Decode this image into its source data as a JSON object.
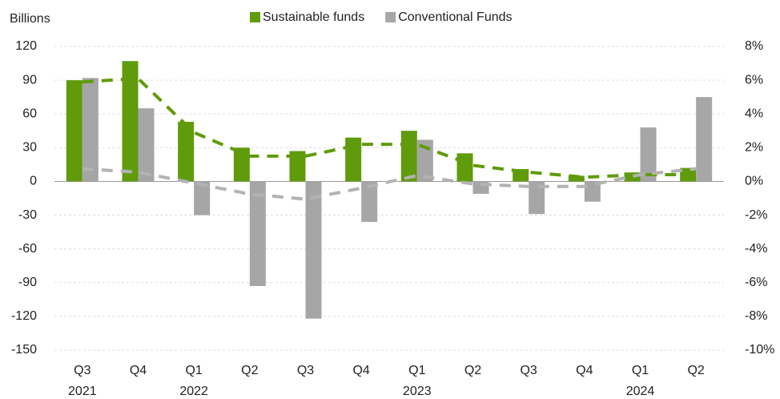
{
  "chart_data": {
    "type": "combo",
    "y_axis_label": "Billions",
    "categories": [
      "Q3",
      "Q4",
      "Q1",
      "Q2",
      "Q3",
      "Q4",
      "Q1",
      "Q2",
      "Q3",
      "Q4",
      "Q1",
      "Q2"
    ],
    "category_years": [
      "2021",
      null,
      "2022",
      null,
      null,
      null,
      "2023",
      null,
      null,
      null,
      "2024",
      null
    ],
    "series": [
      {
        "name": "Sustainable funds",
        "type": "bar",
        "color": "#5f9b0a",
        "values": [
          90,
          107,
          53,
          30,
          27,
          39,
          45,
          25,
          11,
          5,
          8,
          12
        ]
      },
      {
        "name": "Conventional Funds",
        "type": "bar",
        "color": "#a6a6a6",
        "values": [
          92,
          65,
          -30,
          -93,
          -122,
          -36,
          37,
          -11,
          -29,
          -18,
          48,
          75
        ]
      },
      {
        "type": "line",
        "axis": "y2",
        "color": "#5f9b0a",
        "values": [
          5.9,
          6.1,
          2.9,
          1.5,
          1.5,
          2.2,
          2.2,
          0.95,
          0.55,
          0.25,
          0.4,
          0.4
        ]
      },
      {
        "type": "line",
        "axis": "y2",
        "color": "#b3b3b3",
        "values": [
          0.75,
          0.55,
          -0.1,
          -0.75,
          -1.05,
          -0.4,
          0.35,
          -0.15,
          -0.3,
          -0.3,
          0.4,
          0.75
        ]
      }
    ],
    "ylim": [
      -150,
      120
    ],
    "yticks": [
      -150,
      -120,
      -90,
      -60,
      -30,
      0,
      30,
      60,
      90,
      120
    ],
    "y2lim": [
      -10,
      8
    ],
    "y2ticks": [
      {
        "value": -10,
        "label": "-10%"
      },
      {
        "value": -8,
        "label": "-8%"
      },
      {
        "value": -6,
        "label": "-6%"
      },
      {
        "value": -4,
        "label": "-4%"
      },
      {
        "value": -2,
        "label": "-2%"
      },
      {
        "value": 0,
        "label": "0%"
      },
      {
        "value": 2,
        "label": "2%"
      },
      {
        "value": 4,
        "label": "4%"
      },
      {
        "value": 6,
        "label": "6%"
      },
      {
        "value": 8,
        "label": "8%"
      }
    ],
    "grid": true
  }
}
